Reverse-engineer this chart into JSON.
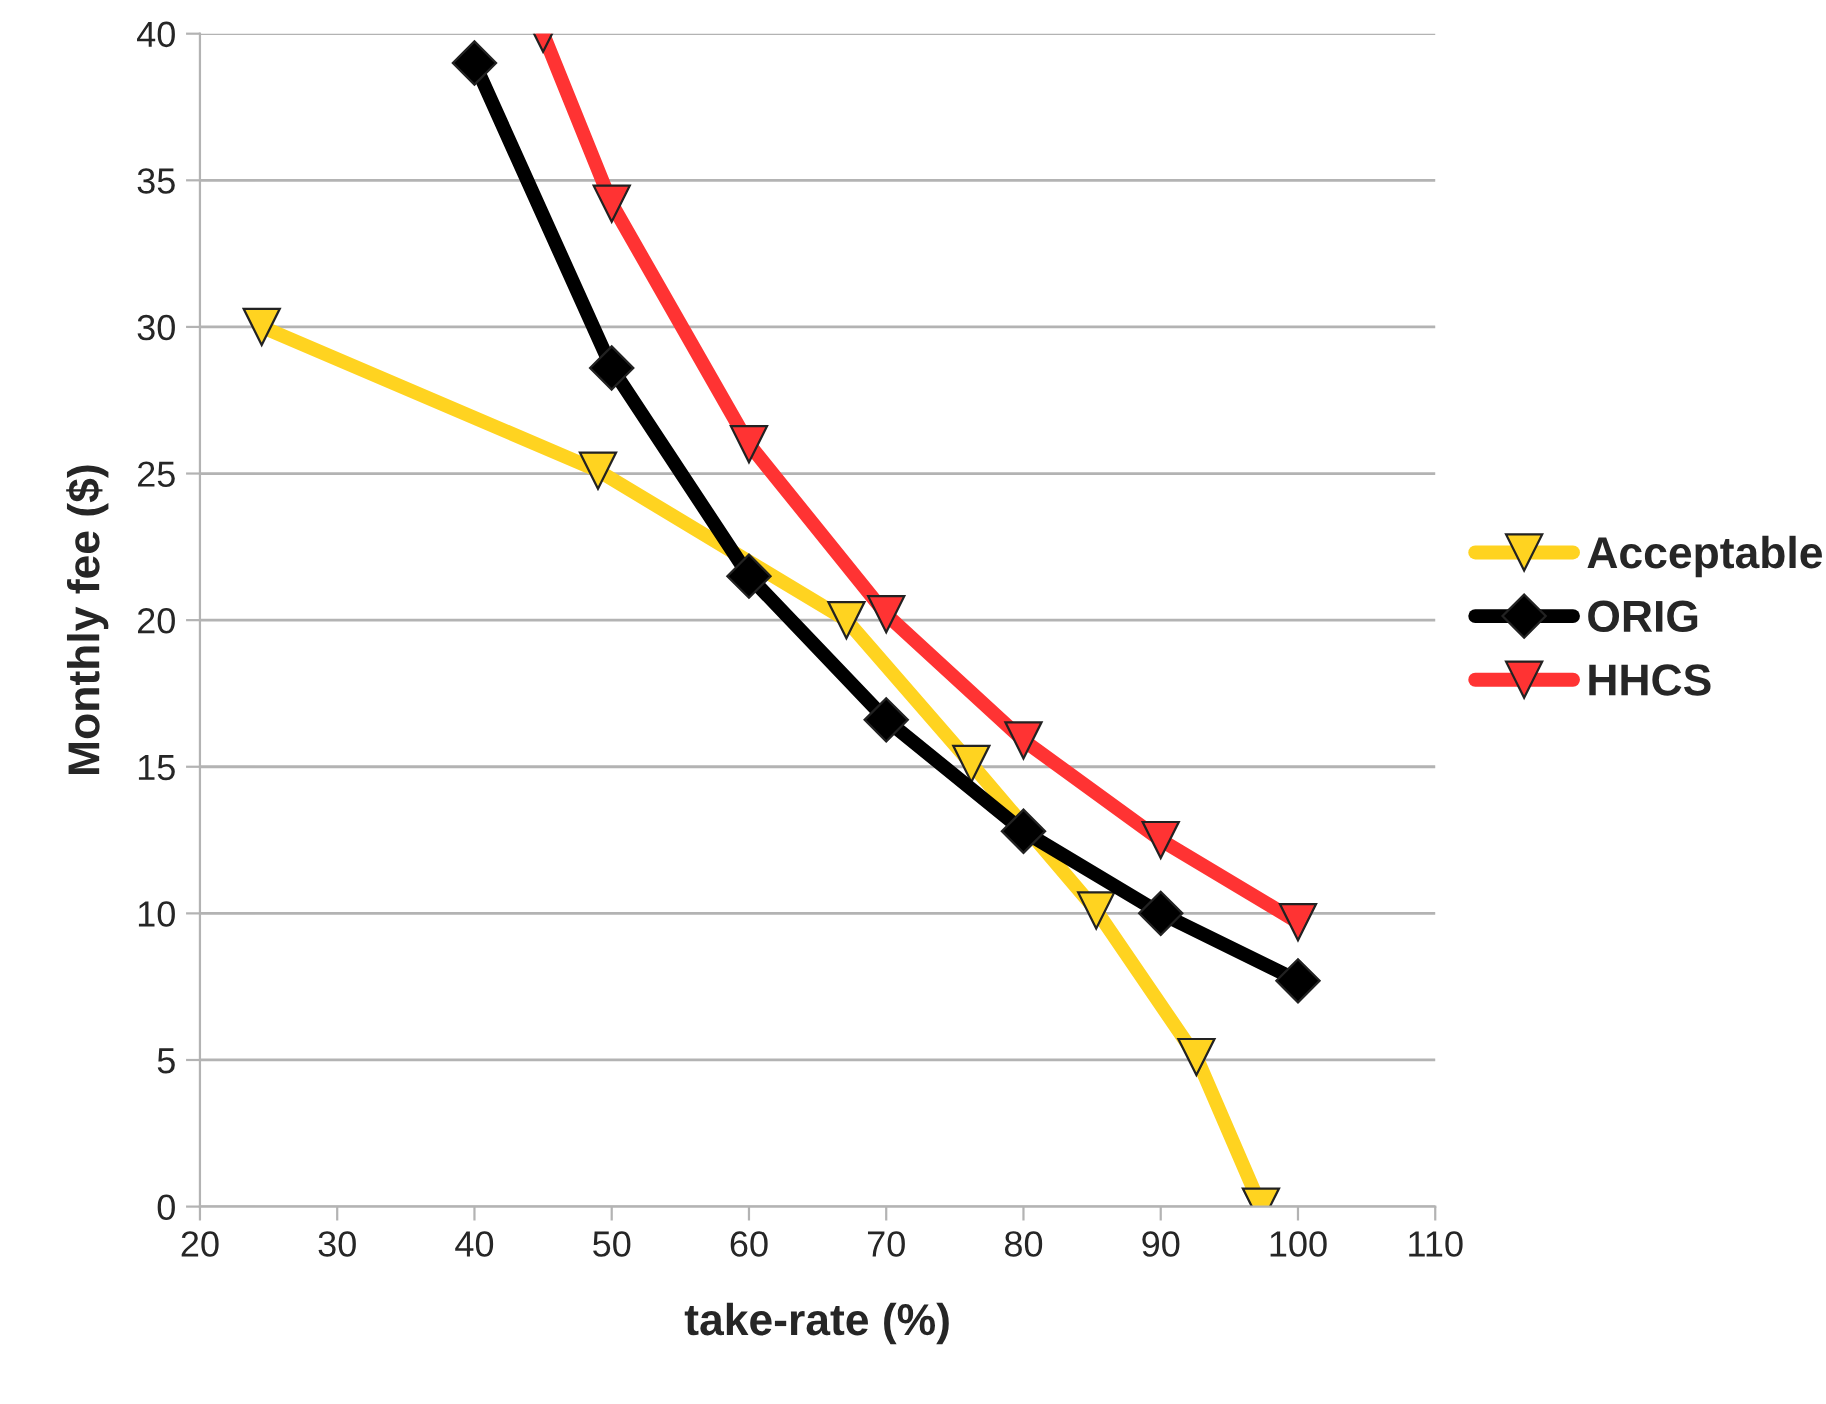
{
  "chart_data": {
    "type": "line",
    "xlabel": "take-rate (%)",
    "ylabel": "Monthly fee ($)",
    "xlim": [
      20,
      110
    ],
    "xticks": [
      20,
      30,
      40,
      50,
      60,
      70,
      80,
      90,
      100,
      110
    ],
    "ylim": [
      0,
      40
    ],
    "yticks": [
      0,
      5,
      10,
      15,
      20,
      25,
      30,
      35,
      40
    ],
    "grid": "y",
    "legend": "right",
    "series": [
      {
        "name": "Acceptable",
        "color": "#ffd320",
        "marker": "triangle",
        "x": [
          24.5,
          49,
          67.1,
          76.2,
          85.3,
          92.6,
          97.3
        ],
        "values": [
          30,
          25.1,
          20,
          15.1,
          10.1,
          5.1,
          0
        ]
      },
      {
        "name": "ORIG",
        "color": "#000000",
        "marker": "diamond",
        "x": [
          40,
          50,
          60,
          70,
          80,
          90,
          100
        ],
        "values": [
          39,
          28.6,
          21.5,
          16.6,
          12.8,
          10,
          7.7
        ]
      },
      {
        "name": "HHCS",
        "color": "#ff3333",
        "marker": "triangle",
        "x": [
          45,
          50,
          60,
          70,
          80,
          90,
          100
        ],
        "values": [
          40,
          34.2,
          26,
          20.2,
          15.9,
          12.5,
          9.7
        ]
      }
    ]
  }
}
